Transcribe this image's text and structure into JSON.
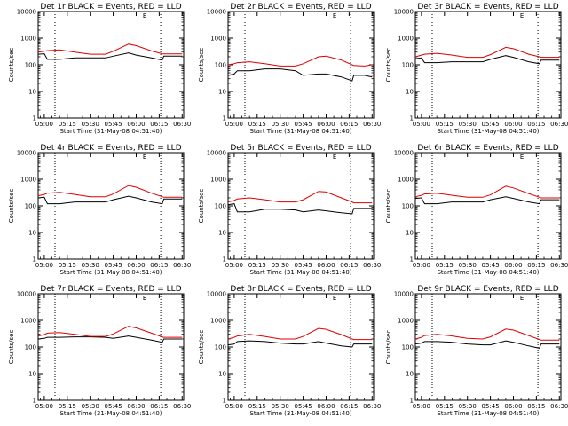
{
  "figure": {
    "panels": [
      {
        "det": "1r",
        "title": "Det 1r BLACK = Events, RED = LLD",
        "marker": "E"
      },
      {
        "det": "2r",
        "title": "Det 2r BLACK = Events, RED = LLD",
        "marker": "E"
      },
      {
        "det": "3r",
        "title": "Det 3r BLACK = Events, RED = LLD",
        "marker": "E"
      },
      {
        "det": "4r",
        "title": "Det 4r BLACK = Events, RED = LLD",
        "marker": "E"
      },
      {
        "det": "5r",
        "title": "Det 5r BLACK = Events, RED = LLD",
        "marker": "E"
      },
      {
        "det": "6r",
        "title": "Det 6r BLACK = Events, RED = LLD",
        "marker": "E"
      },
      {
        "det": "7r",
        "title": "Det 7r BLACK = Events, RED = LLD",
        "marker": "E"
      },
      {
        "det": "8r",
        "title": "Det 8r BLACK = Events, RED = LLD",
        "marker": "E"
      },
      {
        "det": "9r",
        "title": "Det 9r BLACK = Events, RED = LLD",
        "marker": "E"
      }
    ],
    "xlabel": "Start Time (31-May-08 04:51:40)",
    "ylabel": "Counts/sec",
    "xticks": [
      "05:00",
      "05:15",
      "05:30",
      "05:45",
      "06:00",
      "06:15",
      "06:30"
    ],
    "yticks": [
      "1",
      "10",
      "100",
      "1000",
      "10000"
    ]
  },
  "chart_data": [
    {
      "type": "line",
      "title": "Det 1r BLACK = Events, RED = LLD",
      "xlabel": "Start Time (31-May-08 04:51:40)",
      "ylabel": "Counts/sec",
      "x_minutes_from_0500": [
        -4.0,
        0.0,
        2.0,
        10.0,
        20.0,
        30.0,
        40.0,
        45.0,
        55.0,
        60.0,
        70.0,
        77.0,
        78.0,
        85.0,
        90.0
      ],
      "xlim": [
        -4.0,
        91.0
      ],
      "ylim": [
        1,
        10000
      ],
      "yscale": "log",
      "vlines": [
        7.0,
        76.0
      ],
      "series": [
        {
          "name": "Events",
          "color": "#000000",
          "values": [
            250,
            260,
            160,
            160,
            180,
            180,
            180,
            210,
            280,
            230,
            180,
            150,
            210,
            210,
            210
          ]
        },
        {
          "name": "LLD",
          "color": "#dd0000",
          "values": [
            300,
            320,
            340,
            360,
            300,
            250,
            250,
            320,
            600,
            520,
            330,
            260,
            255,
            255,
            255
          ]
        }
      ]
    },
    {
      "type": "line",
      "title": "Det 2r BLACK = Events, RED = LLD",
      "xlabel": "Start Time (31-May-08 04:51:40)",
      "ylabel": "Counts/sec",
      "x_minutes_from_0500": [
        -4.0,
        0.0,
        2.0,
        10.0,
        20.0,
        30.0,
        40.0,
        45.0,
        55.0,
        60.0,
        70.0,
        77.0,
        78.0,
        85.0,
        90.0
      ],
      "xlim": [
        -4.0,
        91.0
      ],
      "ylim": [
        1,
        10000
      ],
      "yscale": "log",
      "vlines": [
        7.0,
        76.0
      ],
      "series": [
        {
          "name": "Events",
          "color": "#000000",
          "values": [
            40,
            45,
            60,
            60,
            70,
            70,
            60,
            40,
            45,
            45,
            35,
            25,
            40,
            40,
            35
          ]
        },
        {
          "name": "LLD",
          "color": "#dd0000",
          "values": [
            100,
            110,
            120,
            130,
            110,
            90,
            90,
            110,
            200,
            210,
            150,
            100,
            95,
            90,
            100
          ]
        }
      ]
    },
    {
      "type": "line",
      "title": "Det 3r BLACK = Events, RED = LLD",
      "xlabel": "Start Time (31-May-08 04:51:40)",
      "ylabel": "Counts/sec",
      "x_minutes_from_0500": [
        -4.0,
        0.0,
        2.0,
        10.0,
        20.0,
        30.0,
        40.0,
        45.0,
        55.0,
        60.0,
        70.0,
        77.0,
        78.0,
        85.0,
        90.0
      ],
      "xlim": [
        -4.0,
        91.0
      ],
      "ylim": [
        1,
        10000
      ],
      "yscale": "log",
      "vlines": [
        7.0,
        76.0
      ],
      "series": [
        {
          "name": "Events",
          "color": "#000000",
          "values": [
            170,
            180,
            120,
            120,
            130,
            130,
            130,
            160,
            220,
            190,
            130,
            110,
            150,
            150,
            150
          ]
        },
        {
          "name": "LLD",
          "color": "#dd0000",
          "values": [
            200,
            230,
            250,
            270,
            230,
            190,
            190,
            240,
            450,
            400,
            250,
            200,
            190,
            190,
            190
          ]
        }
      ]
    },
    {
      "type": "line",
      "title": "Det 4r BLACK = Events, RED = LLD",
      "xlabel": "Start Time (31-May-08 04:51:40)",
      "ylabel": "Counts/sec",
      "x_minutes_from_0500": [
        -4.0,
        0.0,
        2.0,
        10.0,
        20.0,
        30.0,
        40.0,
        45.0,
        55.0,
        60.0,
        70.0,
        77.0,
        78.0,
        85.0,
        90.0
      ],
      "xlim": [
        -4.0,
        91.0
      ],
      "ylim": [
        1,
        10000
      ],
      "yscale": "log",
      "vlines": [
        7.0,
        76.0
      ],
      "series": [
        {
          "name": "Events",
          "color": "#000000",
          "values": [
            200,
            210,
            120,
            120,
            140,
            140,
            140,
            170,
            230,
            200,
            140,
            120,
            180,
            180,
            180
          ]
        },
        {
          "name": "LLD",
          "color": "#dd0000",
          "values": [
            240,
            270,
            300,
            320,
            270,
            220,
            220,
            280,
            580,
            500,
            300,
            220,
            210,
            210,
            210
          ]
        }
      ]
    },
    {
      "type": "line",
      "title": "Det 5r BLACK = Events, RED = LLD",
      "xlabel": "Start Time (31-May-08 04:51:40)",
      "ylabel": "Counts/sec",
      "x_minutes_from_0500": [
        -4.0,
        0.0,
        2.0,
        10.0,
        20.0,
        30.0,
        40.0,
        45.0,
        55.0,
        60.0,
        70.0,
        77.0,
        78.0,
        85.0,
        90.0
      ],
      "xlim": [
        -4.0,
        91.0
      ],
      "ylim": [
        1,
        10000
      ],
      "yscale": "log",
      "vlines": [
        7.0,
        76.0
      ],
      "series": [
        {
          "name": "Events",
          "color": "#000000",
          "values": [
            110,
            120,
            60,
            60,
            75,
            75,
            70,
            60,
            70,
            65,
            55,
            50,
            80,
            80,
            80
          ]
        },
        {
          "name": "LLD",
          "color": "#dd0000",
          "values": [
            140,
            160,
            180,
            200,
            170,
            140,
            140,
            170,
            350,
            330,
            200,
            140,
            130,
            130,
            130
          ]
        }
      ]
    },
    {
      "type": "line",
      "title": "Det 6r BLACK = Events, RED = LLD",
      "xlabel": "Start Time (31-May-08 04:51:40)",
      "ylabel": "Counts/sec",
      "x_minutes_from_0500": [
        -4.0,
        0.0,
        2.0,
        10.0,
        20.0,
        30.0,
        40.0,
        45.0,
        55.0,
        60.0,
        70.0,
        77.0,
        78.0,
        85.0,
        90.0
      ],
      "xlim": [
        -4.0,
        91.0
      ],
      "ylim": [
        1,
        10000
      ],
      "yscale": "log",
      "vlines": [
        7.0,
        76.0
      ],
      "series": [
        {
          "name": "Events",
          "color": "#000000",
          "values": [
            190,
            200,
            120,
            120,
            140,
            140,
            140,
            170,
            220,
            190,
            140,
            120,
            170,
            170,
            170
          ]
        },
        {
          "name": "LLD",
          "color": "#dd0000",
          "values": [
            220,
            250,
            280,
            300,
            250,
            210,
            210,
            260,
            550,
            470,
            290,
            210,
            200,
            200,
            200
          ]
        }
      ]
    },
    {
      "type": "line",
      "title": "Det 7r BLACK = Events, RED = LLD",
      "xlabel": "Start Time (31-May-08 04:51:40)",
      "ylabel": "Counts/sec",
      "x_minutes_from_0500": [
        -4.0,
        0.0,
        2.0,
        10.0,
        20.0,
        30.0,
        40.0,
        45.0,
        55.0,
        60.0,
        70.0,
        77.0,
        78.0,
        85.0,
        90.0
      ],
      "xlim": [
        -4.0,
        91.0
      ],
      "ylim": [
        1,
        10000
      ],
      "yscale": "log",
      "vlines": [
        7.0,
        76.0
      ],
      "series": [
        {
          "name": "Events",
          "color": "#000000",
          "values": [
            200,
            210,
            230,
            230,
            240,
            240,
            230,
            210,
            260,
            230,
            180,
            150,
            200,
            200,
            200
          ]
        },
        {
          "name": "LLD",
          "color": "#dd0000",
          "values": [
            260,
            290,
            330,
            350,
            300,
            250,
            250,
            310,
            600,
            520,
            330,
            240,
            230,
            230,
            230
          ]
        }
      ]
    },
    {
      "type": "line",
      "title": "Det 8r BLACK = Events, RED = LLD",
      "xlabel": "Start Time (31-May-08 04:51:40)",
      "ylabel": "Counts/sec",
      "x_minutes_from_0500": [
        -4.0,
        0.0,
        2.0,
        10.0,
        20.0,
        30.0,
        40.0,
        45.0,
        55.0,
        60.0,
        70.0,
        77.0,
        78.0,
        85.0,
        90.0
      ],
      "xlim": [
        -4.0,
        91.0
      ],
      "ylim": [
        1,
        10000
      ],
      "yscale": "log",
      "vlines": [
        7.0,
        76.0
      ],
      "series": [
        {
          "name": "Events",
          "color": "#000000",
          "values": [
            120,
            130,
            160,
            170,
            160,
            140,
            130,
            130,
            160,
            140,
            110,
            100,
            130,
            130,
            130
          ]
        },
        {
          "name": "LLD",
          "color": "#dd0000",
          "values": [
            200,
            230,
            260,
            300,
            250,
            200,
            200,
            250,
            500,
            460,
            290,
            200,
            190,
            190,
            190
          ]
        }
      ]
    },
    {
      "type": "line",
      "title": "Det 9r BLACK = Events, RED = LLD",
      "xlabel": "Start Time (31-May-08 04:51:40)",
      "ylabel": "Counts/sec",
      "x_minutes_from_0500": [
        -4.0,
        0.0,
        2.0,
        10.0,
        20.0,
        30.0,
        40.0,
        45.0,
        55.0,
        60.0,
        70.0,
        77.0,
        78.0,
        85.0,
        90.0
      ],
      "xlim": [
        -4.0,
        91.0
      ],
      "ylim": [
        1,
        10000
      ],
      "yscale": "log",
      "vlines": [
        7.0,
        76.0
      ],
      "series": [
        {
          "name": "Events",
          "color": "#000000",
          "values": [
            130,
            140,
            160,
            160,
            150,
            130,
            120,
            120,
            170,
            150,
            110,
            90,
            130,
            130,
            130
          ]
        },
        {
          "name": "LLD",
          "color": "#dd0000",
          "values": [
            200,
            230,
            270,
            300,
            260,
            210,
            200,
            240,
            470,
            430,
            270,
            190,
            180,
            180,
            180
          ]
        }
      ]
    }
  ]
}
